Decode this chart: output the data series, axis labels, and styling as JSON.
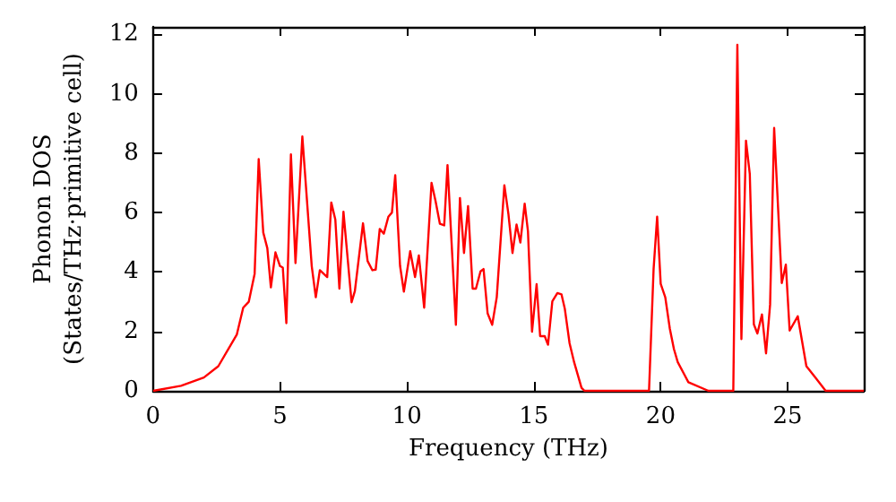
{
  "chart_data": {
    "type": "line",
    "xlabel": "Frequency (THz)",
    "ylabel": "Phonon DOS\n(States/THz·primitive cell)",
    "xlim": [
      0,
      28
    ],
    "xticks": [
      0,
      5,
      10,
      15,
      20,
      25
    ],
    "ylim": [
      0,
      12.25
    ],
    "yticks": [
      0,
      2,
      4,
      6,
      8,
      10,
      12
    ],
    "grid": false,
    "marker": "none",
    "line_style": "solid",
    "series": [
      {
        "color": "#ff0000",
        "x": [
          0,
          1.1,
          2.0,
          2.57,
          3.3,
          3.55,
          3.77,
          4.0,
          4.16,
          4.34,
          4.5,
          4.64,
          4.82,
          5.0,
          5.11,
          5.25,
          5.43,
          5.61,
          5.88,
          6.25,
          6.41,
          6.57,
          6.86,
          7.02,
          7.18,
          7.34,
          7.5,
          7.82,
          7.95,
          8.27,
          8.45,
          8.64,
          8.77,
          8.93,
          9.09,
          9.27,
          9.41,
          9.54,
          9.73,
          9.88,
          10.13,
          10.32,
          10.47,
          10.68,
          10.97,
          11.13,
          11.3,
          11.47,
          11.6,
          11.93,
          12.09,
          12.25,
          12.41,
          12.59,
          12.72,
          12.9,
          13.02,
          13.18,
          13.36,
          13.54,
          13.84,
          14.0,
          14.16,
          14.32,
          14.47,
          14.64,
          14.77,
          14.93,
          15.11,
          15.25,
          15.43,
          15.56,
          15.73,
          15.93,
          16.09,
          16.22,
          16.41,
          16.59,
          16.88,
          17.0,
          19.54,
          19.72,
          19.86,
          20.0,
          20.18,
          20.36,
          20.52,
          20.67,
          21.09,
          21.88,
          22.86,
          23.02,
          23.18,
          23.36,
          23.51,
          23.67,
          23.81,
          23.99,
          24.15,
          24.31,
          24.47,
          24.77,
          24.93,
          25.08,
          25.4,
          25.74,
          26.09,
          26.5,
          28
        ],
        "values": [
          0,
          0.17,
          0.45,
          0.83,
          1.9,
          2.8,
          3.0,
          3.94,
          7.8,
          5.33,
          4.8,
          3.48,
          4.66,
          4.2,
          4.15,
          2.28,
          7.96,
          4.3,
          8.56,
          4.2,
          3.15,
          4.06,
          3.83,
          6.34,
          5.76,
          3.44,
          6.03,
          2.98,
          3.36,
          5.64,
          4.37,
          4.06,
          4.08,
          5.45,
          5.29,
          5.86,
          6.0,
          7.26,
          4.21,
          3.34,
          4.7,
          3.83,
          4.56,
          2.8,
          7.0,
          6.38,
          5.62,
          5.57,
          7.6,
          2.22,
          6.49,
          4.64,
          6.22,
          3.44,
          3.44,
          4.02,
          4.1,
          2.61,
          2.22,
          3.15,
          6.92,
          5.95,
          4.64,
          5.6,
          4.99,
          6.3,
          5.37,
          1.99,
          3.59,
          1.84,
          1.84,
          1.55,
          3.01,
          3.29,
          3.25,
          2.77,
          1.6,
          0.96,
          0.1,
          0,
          0,
          4.1,
          5.86,
          3.6,
          3.15,
          2.09,
          1.41,
          0.97,
          0.29,
          0,
          0,
          11.65,
          1.74,
          8.42,
          7.3,
          2.24,
          1.93,
          2.57,
          1.26,
          2.9,
          8.85,
          3.63,
          4.25,
          2.03,
          2.51,
          0.83,
          0.45,
          0,
          0
        ]
      }
    ]
  }
}
